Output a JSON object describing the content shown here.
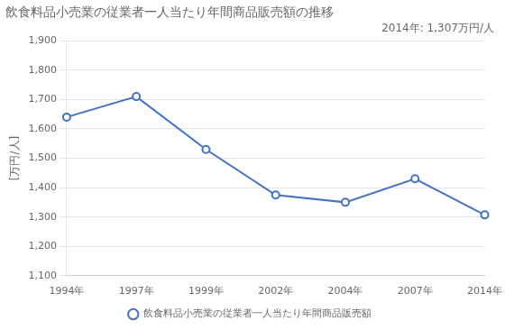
{
  "chart_data": {
    "type": "line",
    "title": "飲食料品小売業の従業者一人当たり年間商品販売額の推移",
    "ylabel": "[万円/人]",
    "annotation": "2014年: 1,307万円/人",
    "categories": [
      "1994年",
      "1997年",
      "1999年",
      "2002年",
      "2004年",
      "2007年",
      "2014年"
    ],
    "series": [
      {
        "name": "飲食料品小売業の従業者一人当たり年間商品販売額",
        "color": "#4472c4",
        "marker": "circle",
        "values": [
          1640,
          1710,
          1530,
          1375,
          1350,
          1430,
          1307
        ]
      }
    ],
    "ylim": [
      1100,
      1900
    ],
    "yticks": [
      {
        "value": 1100,
        "label": "1,100"
      },
      {
        "value": 1200,
        "label": "1,200"
      },
      {
        "value": 1300,
        "label": "1,300"
      },
      {
        "value": 1400,
        "label": "1,400"
      },
      {
        "value": 1500,
        "label": "1,500"
      },
      {
        "value": 1600,
        "label": "1,600"
      },
      {
        "value": 1700,
        "label": "1,700"
      },
      {
        "value": 1800,
        "label": "1,800"
      },
      {
        "value": 1900,
        "label": "1,900"
      }
    ],
    "grid": true,
    "legend": "bottom"
  }
}
